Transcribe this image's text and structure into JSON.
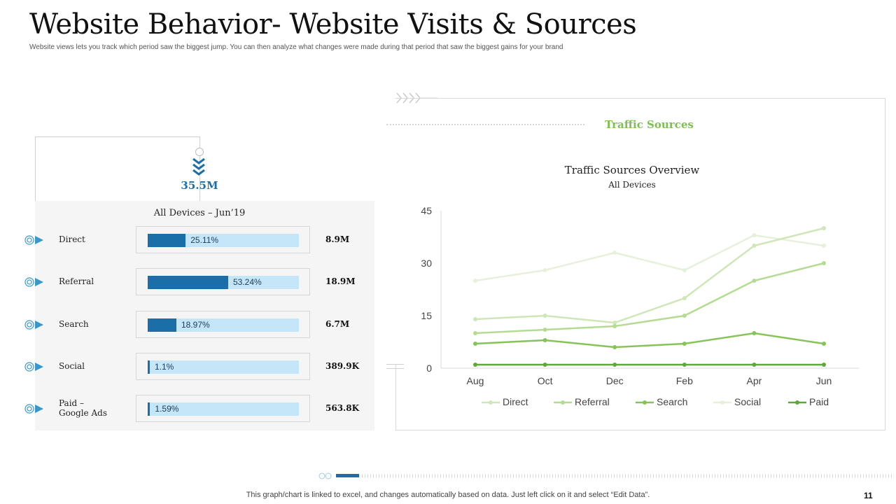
{
  "header": {
    "title": "Website Behavior- Website Visits & Sources",
    "subtitle": "Website views lets you track which period saw the biggest jump. You can then analyze what changes were made during that period that saw the biggest gains for your brand"
  },
  "devices": {
    "total": "35.5M",
    "header": "All Devices – Jun’19",
    "rows": [
      {
        "label": "Direct",
        "percent_label": "25.11%",
        "percent": 25.11,
        "value": "8.9M"
      },
      {
        "label": "Referral",
        "percent_label": "53.24%",
        "percent": 53.24,
        "value": "18.9M"
      },
      {
        "label": "Search",
        "percent_label": "18.97%",
        "percent": 18.97,
        "value": "6.7M"
      },
      {
        "label": "Social",
        "percent_label": "1.1%",
        "percent": 1.1,
        "value": "389.9K"
      },
      {
        "label": "Paid – Google Ads",
        "percent_label": "1.59%",
        "percent": 1.59,
        "value": "563.8K"
      }
    ],
    "colors": {
      "fill": "#1a6fa8",
      "track": "#c5e5f8"
    }
  },
  "section_heading": "Traffic Sources",
  "chart_data": {
    "type": "line",
    "title": "Traffic Sources Overview",
    "subtitle": "All Devices",
    "categories": [
      "Aug",
      "Oct",
      "Dec",
      "Feb",
      "Apr",
      "Jun"
    ],
    "ylim": [
      0,
      45
    ],
    "yticks": [
      0,
      15,
      30,
      45
    ],
    "series": [
      {
        "name": "Direct",
        "color": "#cfe6b8",
        "values": [
          14,
          15,
          13,
          20,
          35,
          40
        ]
      },
      {
        "name": "Referral",
        "color": "#b5db93",
        "values": [
          10,
          11,
          12,
          15,
          25,
          30
        ]
      },
      {
        "name": "Search",
        "color": "#86c45a",
        "values": [
          7,
          8,
          6,
          7,
          10,
          7
        ]
      },
      {
        "name": "Social",
        "color": "#e6f1dc",
        "values": [
          25,
          28,
          33,
          28,
          38,
          35
        ]
      },
      {
        "name": "Paid",
        "color": "#5fa83c",
        "values": [
          1,
          1,
          1,
          1,
          1,
          1
        ]
      }
    ],
    "legend_position": "bottom"
  },
  "footer": {
    "note": "This graph/chart is linked to excel,  and changes automatically based on data. Just left click on it and select “Edit Data”.",
    "page": "11"
  }
}
